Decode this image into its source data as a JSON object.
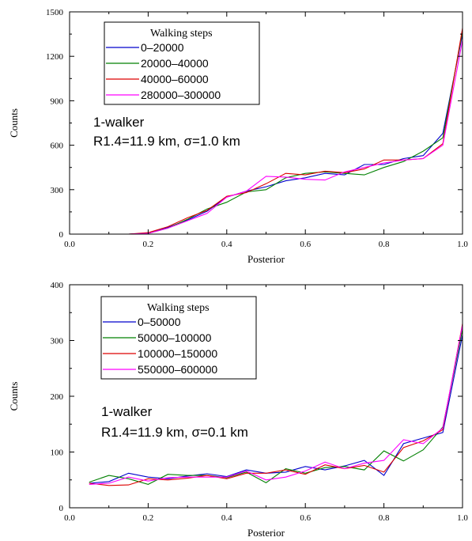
{
  "chart_data": [
    {
      "type": "line",
      "xlabel": "Posterior",
      "ylabel": "Counts",
      "xlim": [
        0.0,
        1.0
      ],
      "ylim": [
        0,
        1500
      ],
      "xticks": [
        0.0,
        0.2,
        0.4,
        0.6,
        0.8,
        1.0
      ],
      "xtick_labels": [
        "0.0",
        "0.2",
        "0.4",
        "0.6",
        "0.8",
        "1.0"
      ],
      "yticks": [
        0,
        300,
        600,
        900,
        1200,
        1500
      ],
      "ytick_labels": [
        "0",
        "300",
        "600",
        "900",
        "1200",
        "1500"
      ],
      "legend_title": "Walking steps",
      "legend_position": "top-left",
      "annotations": [
        "1-walker",
        "R1.4=11.9 km, σ=1.0 km"
      ],
      "grid": false,
      "series": [
        {
          "name": "0–20000",
          "color": "#0000cc",
          "x": [
            0.15,
            0.2,
            0.25,
            0.3,
            0.35,
            0.4,
            0.45,
            0.5,
            0.55,
            0.6,
            0.65,
            0.7,
            0.75,
            0.8,
            0.85,
            0.9,
            0.95,
            1.0
          ],
          "y": [
            0,
            5,
            45,
            95,
            155,
            250,
            290,
            320,
            360,
            380,
            410,
            400,
            470,
            470,
            510,
            530,
            680,
            1350
          ]
        },
        {
          "name": "20000–40000",
          "color": "#008000",
          "x": [
            0.15,
            0.2,
            0.25,
            0.3,
            0.35,
            0.4,
            0.45,
            0.5,
            0.55,
            0.6,
            0.65,
            0.7,
            0.75,
            0.8,
            0.85,
            0.9,
            0.95,
            1.0
          ],
          "y": [
            0,
            5,
            40,
            100,
            170,
            215,
            285,
            300,
            380,
            410,
            420,
            410,
            400,
            450,
            490,
            560,
            650,
            1370
          ]
        },
        {
          "name": "40000–60000",
          "color": "#dd0000",
          "x": [
            0.15,
            0.2,
            0.25,
            0.3,
            0.35,
            0.4,
            0.45,
            0.5,
            0.55,
            0.6,
            0.65,
            0.7,
            0.75,
            0.8,
            0.85,
            0.9,
            0.95,
            1.0
          ],
          "y": [
            0,
            10,
            50,
            110,
            160,
            255,
            280,
            340,
            410,
            400,
            425,
            415,
            440,
            500,
            500,
            510,
            610,
            1390
          ]
        },
        {
          "name": "280000–300000",
          "color": "#ff00ff",
          "x": [
            0.15,
            0.2,
            0.25,
            0.3,
            0.35,
            0.4,
            0.45,
            0.5,
            0.55,
            0.6,
            0.65,
            0.7,
            0.75,
            0.8,
            0.85,
            0.9,
            0.95,
            1.0
          ],
          "y": [
            0,
            5,
            40,
            90,
            140,
            250,
            290,
            390,
            385,
            370,
            365,
            420,
            450,
            480,
            500,
            510,
            600,
            1310
          ]
        }
      ]
    },
    {
      "type": "line",
      "xlabel": "Posterior",
      "ylabel": "Counts",
      "xlim": [
        0.0,
        1.0
      ],
      "ylim": [
        0,
        400
      ],
      "xticks": [
        0.0,
        0.2,
        0.4,
        0.6,
        0.8,
        1.0
      ],
      "xtick_labels": [
        "0.0",
        "0.2",
        "0.4",
        "0.6",
        "0.8",
        "1.0"
      ],
      "yticks": [
        0,
        100,
        200,
        300,
        400
      ],
      "ytick_labels": [
        "0",
        "100",
        "200",
        "300",
        "400"
      ],
      "legend_title": "Walking steps",
      "legend_position": "top-left",
      "annotations": [
        "1-walker",
        "R1.4=11.9 km, σ=0.1 km"
      ],
      "grid": false,
      "series": [
        {
          "name": "0–50000",
          "color": "#0000cc",
          "x": [
            0.05,
            0.1,
            0.15,
            0.2,
            0.25,
            0.3,
            0.35,
            0.4,
            0.45,
            0.5,
            0.55,
            0.6,
            0.65,
            0.7,
            0.75,
            0.8,
            0.85,
            0.9,
            0.95,
            1.0
          ],
          "y": [
            44,
            47,
            62,
            55,
            52,
            57,
            61,
            56,
            68,
            62,
            64,
            74,
            68,
            75,
            85,
            58,
            115,
            125,
            135,
            310
          ]
        },
        {
          "name": "50000–100000",
          "color": "#008000",
          "x": [
            0.05,
            0.1,
            0.15,
            0.2,
            0.25,
            0.3,
            0.35,
            0.4,
            0.45,
            0.5,
            0.55,
            0.6,
            0.65,
            0.7,
            0.75,
            0.8,
            0.85,
            0.9,
            0.95,
            1.0
          ],
          "y": [
            46,
            58,
            52,
            42,
            60,
            58,
            58,
            54,
            64,
            45,
            70,
            62,
            72,
            74,
            68,
            102,
            84,
            104,
            145,
            320
          ]
        },
        {
          "name": "100000–150000",
          "color": "#dd0000",
          "x": [
            0.05,
            0.1,
            0.15,
            0.2,
            0.25,
            0.3,
            0.35,
            0.4,
            0.45,
            0.5,
            0.55,
            0.6,
            0.65,
            0.7,
            0.75,
            0.8,
            0.85,
            0.9,
            0.95,
            1.0
          ],
          "y": [
            44,
            40,
            41,
            52,
            50,
            53,
            58,
            52,
            62,
            62,
            68,
            60,
            77,
            70,
            76,
            64,
            108,
            120,
            140,
            330
          ]
        },
        {
          "name": "550000–600000",
          "color": "#ff00ff",
          "x": [
            0.05,
            0.1,
            0.15,
            0.2,
            0.25,
            0.3,
            0.35,
            0.4,
            0.45,
            0.5,
            0.55,
            0.6,
            0.65,
            0.7,
            0.75,
            0.8,
            0.85,
            0.9,
            0.95,
            1.0
          ],
          "y": [
            42,
            44,
            55,
            48,
            54,
            55,
            55,
            55,
            66,
            50,
            55,
            66,
            82,
            70,
            80,
            85,
            122,
            115,
            143,
            328
          ]
        }
      ]
    }
  ]
}
